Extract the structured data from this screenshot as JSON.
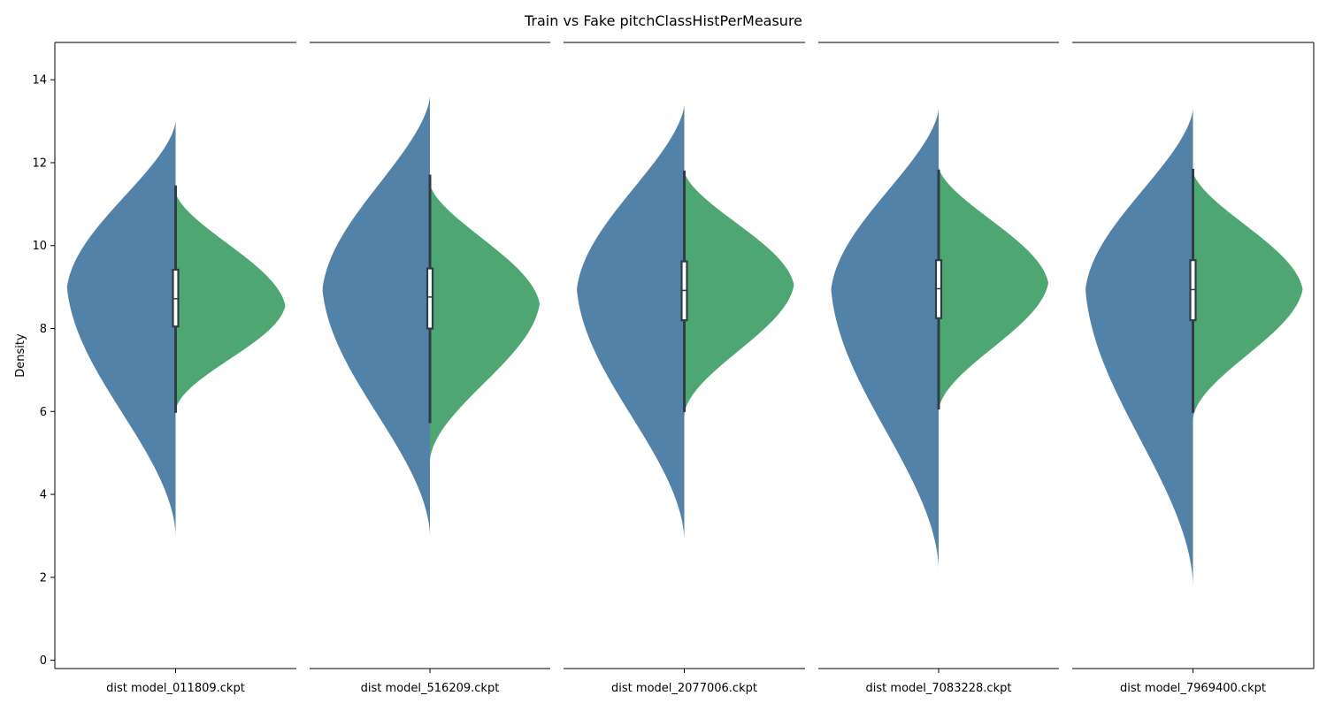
{
  "chart_data": {
    "type": "violin",
    "title": "Train vs Fake pitchClassHistPerMeasure",
    "ylabel": "Density",
    "xlabel": "",
    "ylim": [
      -0.2,
      14.9
    ],
    "yticks": [
      0,
      2,
      4,
      6,
      8,
      10,
      12,
      14
    ],
    "split": true,
    "grid": false,
    "colors": {
      "left": "#5382a8",
      "right": "#4ea672",
      "box": "#2f3e46"
    },
    "panels": [
      {
        "label": "dist model_011809.ckpt",
        "left": {
          "min": 3.0,
          "max": 13.0,
          "peak": 9.0,
          "halfwidth": 0.99
        },
        "right": {
          "min": 6.0,
          "max": 11.3,
          "peak": 8.55,
          "halfwidth": 1.0
        },
        "box": {
          "q1": 8.05,
          "median": 8.72,
          "q3": 9.42,
          "whisker_low": 6.0,
          "whisker_high": 11.42
        }
      },
      {
        "label": "dist model_516209.ckpt",
        "left": {
          "min": 3.0,
          "max": 13.6,
          "peak": 8.95,
          "halfwidth": 0.98
        },
        "right": {
          "min": 4.8,
          "max": 11.5,
          "peak": 8.6,
          "halfwidth": 1.0
        },
        "box": {
          "q1": 8.0,
          "median": 8.76,
          "q3": 9.45,
          "whisker_low": 5.75,
          "whisker_high": 11.68
        }
      },
      {
        "label": "dist model_2077006.ckpt",
        "left": {
          "min": 2.9,
          "max": 13.4,
          "peak": 8.95,
          "halfwidth": 0.98
        },
        "right": {
          "min": 5.9,
          "max": 11.8,
          "peak": 9.05,
          "halfwidth": 1.0
        },
        "box": {
          "q1": 8.2,
          "median": 8.92,
          "q3": 9.62,
          "whisker_low": 6.02,
          "whisker_high": 11.78
        }
      },
      {
        "label": "dist model_7083228.ckpt",
        "left": {
          "min": 2.2,
          "max": 13.3,
          "peak": 8.95,
          "halfwidth": 0.98
        },
        "right": {
          "min": 6.0,
          "max": 11.9,
          "peak": 9.1,
          "halfwidth": 1.0
        },
        "box": {
          "q1": 8.25,
          "median": 8.96,
          "q3": 9.65,
          "whisker_low": 6.08,
          "whisker_high": 11.8
        }
      },
      {
        "label": "dist model_7969400.ckpt",
        "left": {
          "min": 1.8,
          "max": 13.3,
          "peak": 8.95,
          "halfwidth": 0.98
        },
        "right": {
          "min": 5.8,
          "max": 11.8,
          "peak": 8.95,
          "halfwidth": 1.0
        },
        "box": {
          "q1": 8.2,
          "median": 8.94,
          "q3": 9.65,
          "whisker_low": 6.0,
          "whisker_high": 11.82
        }
      }
    ]
  }
}
